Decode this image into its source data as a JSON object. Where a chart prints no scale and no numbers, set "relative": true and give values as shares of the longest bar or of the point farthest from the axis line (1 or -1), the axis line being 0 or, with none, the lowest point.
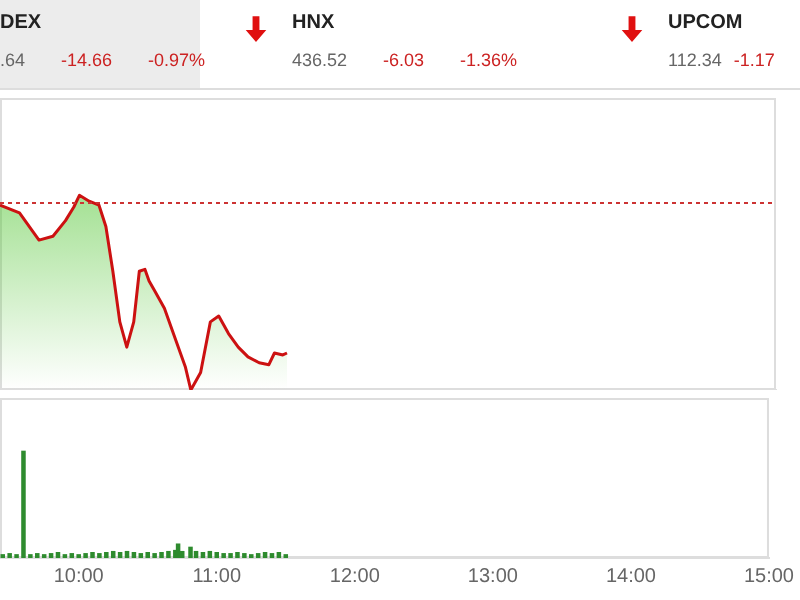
{
  "chart_data": [
    {
      "type": "other",
      "annotations": [
        "DEX",
        ".64",
        "-14.66",
        "-0.97%",
        "HNX",
        "436.52",
        "-6.03",
        "-1.36%",
        "UPCOM",
        "112.34",
        "-1.17"
      ]
    },
    {
      "type": "line",
      "relative": true,
      "tick_labels": false,
      "marker": "none",
      "xlim": [
        9.43,
        15
      ],
      "x": [
        9.43,
        9.57,
        9.67,
        9.71,
        9.81,
        9.9,
        9.96,
        10.0,
        10.07,
        10.14,
        10.19,
        10.24,
        10.29,
        10.34,
        10.39,
        10.43,
        10.47,
        10.5,
        10.54,
        10.61,
        10.69,
        10.76,
        10.8,
        10.87,
        10.94,
        11.0,
        11.07,
        11.14,
        11.21,
        11.29,
        11.36,
        11.4,
        11.46,
        11.49
      ],
      "series": [
        {
          "color": "#cc1111",
          "values": [
            0.95,
            0.91,
            0.81,
            0.77,
            0.79,
            0.87,
            0.94,
            1,
            0.97,
            0.95,
            0.84,
            0.61,
            0.35,
            0.22,
            0.35,
            0.61,
            0.62,
            0.56,
            0.51,
            0.42,
            0.26,
            0.12,
            0,
            0.09,
            0.35,
            0.38,
            0.29,
            0.22,
            0.17,
            0.14,
            0.13,
            0.19,
            0.18,
            0.19
          ]
        }
      ],
      "ref_lines": [
        {
          "axis": "y",
          "value": 0.96,
          "color": "#cc3333",
          "line_style": "dotted"
        }
      ]
    },
    {
      "type": "bar",
      "relative": true,
      "tick_labels": "x",
      "xlim": [
        9.43,
        15
      ],
      "xticks": [
        {
          "value": 10,
          "label": "10:00"
        },
        {
          "value": 11,
          "label": "11:00"
        },
        {
          "value": 12,
          "label": "12:00"
        },
        {
          "value": 13,
          "label": "13:00"
        },
        {
          "value": 14,
          "label": "14:00"
        },
        {
          "value": 15,
          "label": "15:00"
        }
      ],
      "x": [
        9.45,
        9.5,
        9.55,
        9.6,
        9.65,
        9.7,
        9.75,
        9.8,
        9.85,
        9.9,
        9.95,
        10.0,
        10.05,
        10.1,
        10.15,
        10.2,
        10.25,
        10.3,
        10.35,
        10.4,
        10.45,
        10.5,
        10.55,
        10.6,
        10.65,
        10.7,
        10.72,
        10.75,
        10.81,
        10.85,
        10.9,
        10.95,
        11.0,
        11.05,
        11.1,
        11.15,
        11.2,
        11.25,
        11.3,
        11.35,
        11.4,
        11.45,
        11.5
      ],
      "series": [
        {
          "color": "#2e8b2e",
          "values": [
            0.03,
            0.04,
            0.03,
            1,
            0.03,
            0.04,
            0.03,
            0.04,
            0.05,
            0.03,
            0.04,
            0.03,
            0.04,
            0.05,
            0.04,
            0.05,
            0.06,
            0.05,
            0.06,
            0.05,
            0.04,
            0.05,
            0.04,
            0.05,
            0.06,
            0.07,
            0.13,
            0.06,
            0.1,
            0.06,
            0.05,
            0.06,
            0.05,
            0.04,
            0.04,
            0.05,
            0.04,
            0.03,
            0.04,
            0.05,
            0.04,
            0.05,
            0.03
          ]
        }
      ]
    }
  ]
}
